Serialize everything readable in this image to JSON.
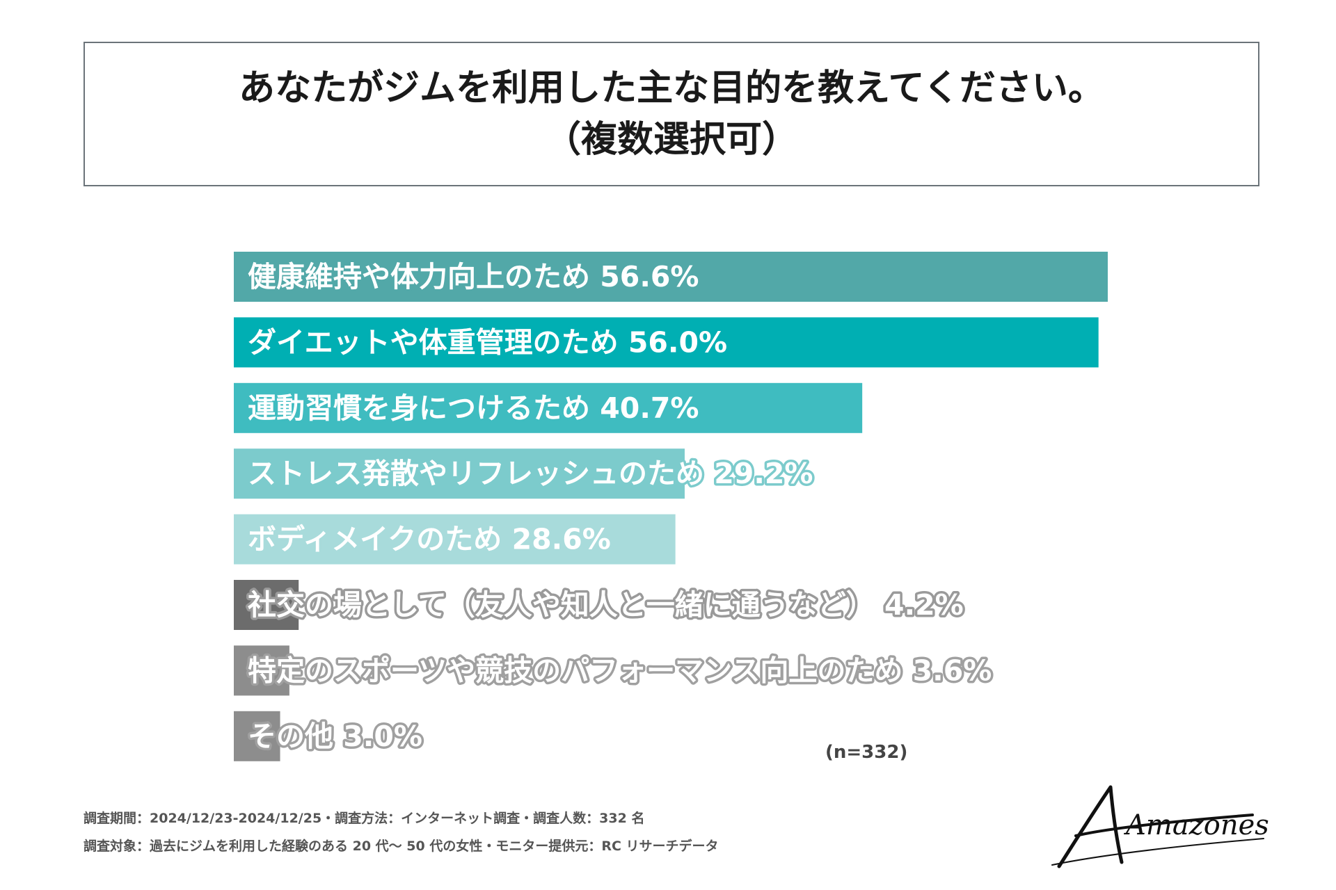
{
  "title": {
    "line1": "あなたがジムを利用した主な目的を教えてください。",
    "line2": "（複数選択可）"
  },
  "chart_data": {
    "type": "bar",
    "orientation": "horizontal",
    "categories": [
      "健康維持や体力向上のため",
      "ダイエットや体重管理のため",
      "運動習慣を身につけるため",
      "ストレス発散やリフレッシュのため",
      "ボディメイクのため",
      "社交の場として（友人や知人と一緒に通うなど）",
      "特定のスポーツや競技のパフォーマンス向上のため",
      "その他"
    ],
    "values": [
      56.6,
      56.0,
      40.7,
      29.2,
      28.6,
      4.2,
      3.6,
      3.0
    ],
    "value_labels": [
      "56.6%",
      "56.0%",
      "40.7%",
      "29.2%",
      "28.6%",
      "4.2%",
      "3.6%",
      "3.0%"
    ],
    "colors": [
      "#52a8a8",
      "#00afb3",
      "#3fbcc0",
      "#7ccbcc",
      "#a8dbdb",
      "#6c6c6c",
      "#8d8d8d",
      "#8d8d8d"
    ],
    "outline_colors": [
      "#52a8a8",
      "#00afb3",
      "#3fbcc0",
      "#7ccbcc",
      "#a8dbdb",
      "#9a9a9a",
      "#a0a0a0",
      "#a0a0a0"
    ],
    "xlim": [
      0,
      56.6
    ],
    "unit": "%",
    "sample_note": "(n=332)"
  },
  "footnotes": [
    "調査期間：2024/12/23-2024/12/25・調査方法：インターネット調査・調査人数：332 名",
    "調査対象：過去にジムを利用した経験のある 20 代〜 50 代の女性・モニター提供元：RC リサーチデータ"
  ],
  "logo": {
    "text": "Amazones"
  }
}
